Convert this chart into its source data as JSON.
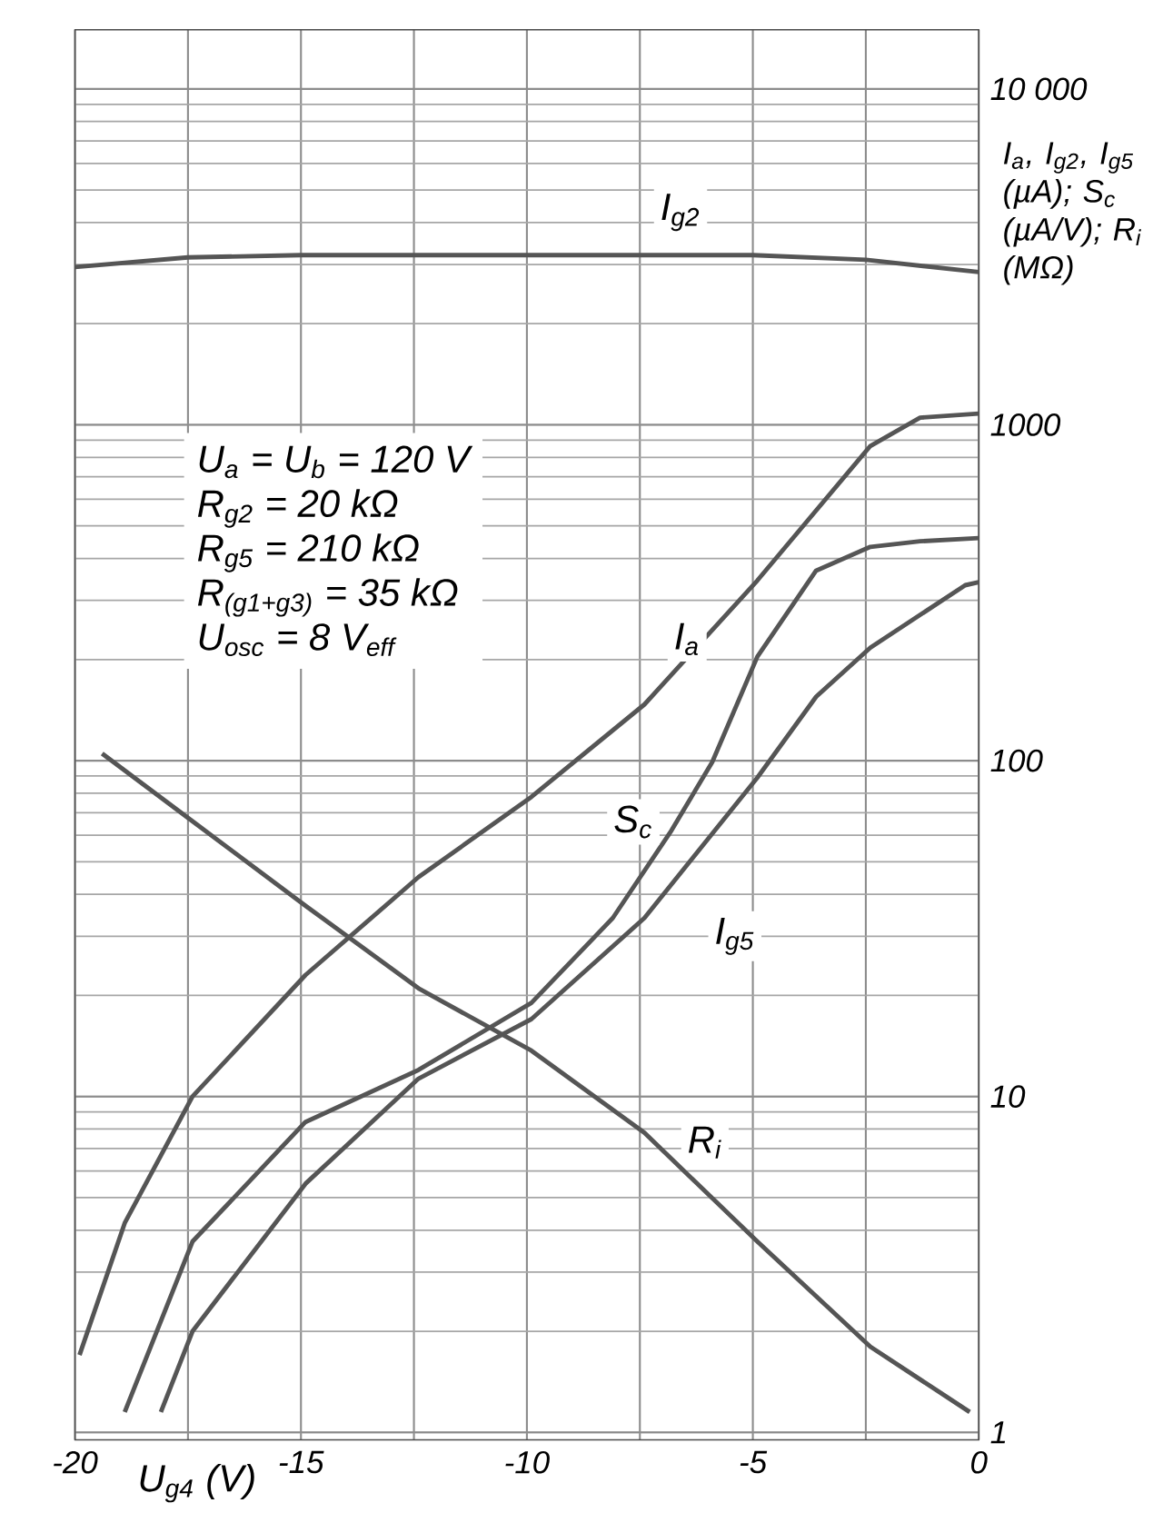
{
  "chart_data": {
    "type": "line",
    "xlabel": "U$_{g4}$ (V)",
    "ylabel": "I$_{a}$, I$_{g2}$, I$_{g5}$ (µA); S$_{c}$ (µA/V); R$_{i}$ (MΩ)",
    "xlim": [
      -20,
      0
    ],
    "ylim": [
      0.95,
      15000
    ],
    "log": "y",
    "grid": true,
    "xticks": [
      -20,
      {
        "value": -17.5,
        "label": null
      },
      -15,
      {
        "value": -12.5,
        "label": null
      },
      -10,
      {
        "value": -7.5,
        "label": null
      },
      -5,
      {
        "value": -2.5,
        "label": null
      },
      0
    ],
    "yticks": [
      1,
      10,
      100,
      1000,
      {
        "value": 10000,
        "label": "10 000"
      }
    ],
    "annotations": [
      "U$_{a}$ = U$_{b}$ = 120 V",
      "R$_{g2}$ = 20 kΩ",
      "R$_{g5}$ = 210 kΩ",
      "R$_{(g1+g3)}$ = 35 kΩ",
      "U$_{osc}$ = 8 V$_{eff}$"
    ],
    "series": [
      {
        "name": "I$_{a}$",
        "color": "#555555",
        "x": [
          -19.9,
          -18.9,
          -17.4,
          -14.9,
          -12.4,
          -9.9,
          -7.4,
          -4.9,
          -2.4,
          -1.3,
          0
        ],
        "values": [
          1.7,
          4.2,
          10,
          23,
          45,
          78,
          147,
          344,
          865,
          1050,
          1080
        ]
      },
      {
        "name": "I$_{g2}$",
        "color": "#555555",
        "x": [
          -20,
          -17.5,
          -15,
          -10,
          -5,
          -2.5,
          0
        ],
        "values": [
          2950,
          3150,
          3200,
          3200,
          3200,
          3100,
          2850
        ]
      },
      {
        "name": "S$_{c}$",
        "color": "#555555",
        "x": [
          -18.9,
          -17.4,
          -14.9,
          -12.4,
          -9.9,
          -8.1,
          -6.8,
          -5.9,
          -4.9,
          -3.6,
          -2.4,
          -1.3,
          0
        ],
        "values": [
          1.15,
          3.7,
          8.4,
          12,
          19,
          34,
          62,
          99,
          204,
          368,
          433,
          450,
          460
        ]
      },
      {
        "name": "I$_{g5}$",
        "color": "#555555",
        "x": [
          -18.1,
          -17.4,
          -14.9,
          -12.4,
          -9.9,
          -7.4,
          -4.9,
          -3.6,
          -2.4,
          -0.3,
          0
        ],
        "values": [
          1.15,
          2,
          5.5,
          11.3,
          17,
          34,
          89,
          155,
          217,
          333,
          340
        ]
      },
      {
        "name": "R$_{i}$",
        "color": "#555555",
        "x": [
          -19.4,
          -17.4,
          -14.9,
          -12.4,
          -9.9,
          -7.4,
          -4.9,
          -2.4,
          -0.2
        ],
        "values": [
          105,
          66,
          37,
          21,
          13.7,
          7.8,
          3.7,
          1.8,
          1.15
        ]
      }
    ]
  }
}
